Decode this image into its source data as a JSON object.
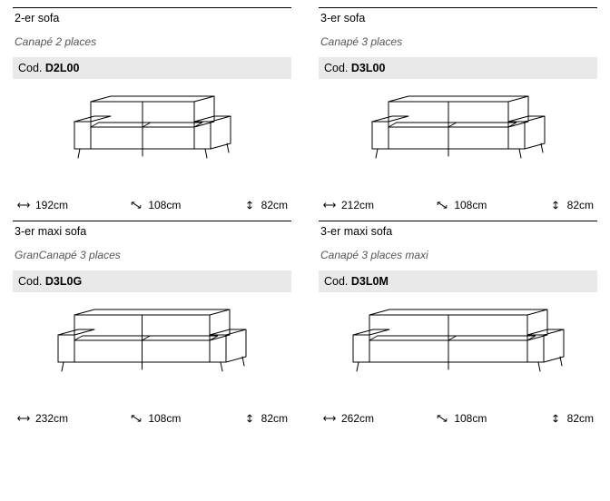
{
  "colors": {
    "bg": "#ffffff",
    "codeBg": "#e9e9e9",
    "line": "#000000",
    "text": "#000000",
    "subtitle": "#555555"
  },
  "products": [
    {
      "title": "2-er sofa",
      "subtitle": "Canapé 2 places",
      "codeLabel": "Cod.",
      "code": "D2L00",
      "sofaWidth": 150,
      "dims": {
        "width": "192cm",
        "depth": "108cm",
        "height": "82cm"
      }
    },
    {
      "title": "3-er sofa",
      "subtitle": "Canapé 3 places",
      "codeLabel": "Cod.",
      "code": "D3L00",
      "sofaWidth": 168,
      "dims": {
        "width": "212cm",
        "depth": "108cm",
        "height": "82cm"
      }
    },
    {
      "title": "3-er maxi sofa",
      "subtitle": "GranCanapé 3 places",
      "codeLabel": "Cod.",
      "code": "D3L0G",
      "sofaWidth": 185,
      "dims": {
        "width": "232cm",
        "depth": "108cm",
        "height": "82cm"
      }
    },
    {
      "title": "3-er maxi sofa",
      "subtitle": "Canapé 3 places maxi",
      "codeLabel": "Cod.",
      "code": "D3L0M",
      "sofaWidth": 210,
      "dims": {
        "width": "262cm",
        "depth": "108cm",
        "height": "82cm"
      }
    }
  ]
}
